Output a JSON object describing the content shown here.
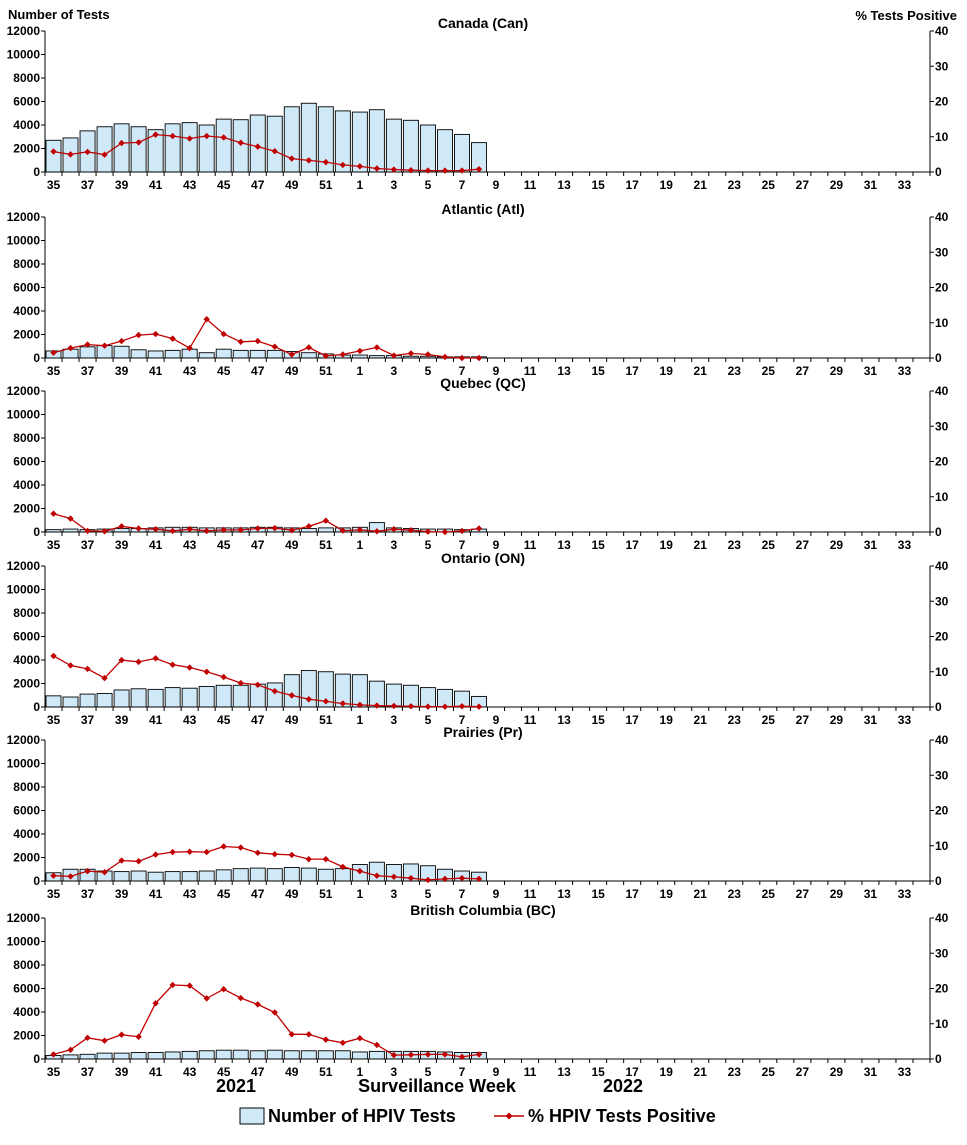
{
  "chart_data": {
    "type": "bar+line",
    "left_axis_label": "Number of Tests",
    "right_axis_label": "%  Tests Positive",
    "xlabel": "Surveillance Week",
    "year_labels": [
      "2021",
      "2022"
    ],
    "weeks": [
      35,
      36,
      37,
      38,
      39,
      40,
      41,
      42,
      43,
      44,
      45,
      46,
      47,
      48,
      49,
      50,
      51,
      52,
      1,
      2,
      3,
      4,
      5,
      6,
      7,
      8,
      9,
      10,
      11,
      12,
      13,
      14,
      15,
      16,
      17,
      18,
      19,
      20,
      21,
      22,
      23,
      24,
      25,
      26,
      27,
      28,
      29,
      30,
      31,
      32,
      33,
      34
    ],
    "x_tick_labels": [
      "35",
      "37",
      "39",
      "41",
      "43",
      "45",
      "47",
      "49",
      "51",
      "1",
      "3",
      "5",
      "7",
      "9",
      "11",
      "13",
      "15",
      "17",
      "19",
      "21",
      "23",
      "25",
      "27",
      "29",
      "31",
      "33"
    ],
    "left_ylim": [
      0,
      12000
    ],
    "left_ticks": [
      "0",
      "2000",
      "4000",
      "6000",
      "8000",
      "10000",
      "12000"
    ],
    "right_ylim": [
      0,
      40
    ],
    "right_ticks": [
      "0",
      "10",
      "20",
      "30",
      "40"
    ],
    "legend": {
      "bar_label": "Number of HPIV Tests",
      "line_label": "% HPIV Tests Positive",
      "bar_color": "#cfe9f8",
      "line_color": "#c00000"
    },
    "panels": [
      {
        "title": "Canada (Can)",
        "tests": [
          2700,
          2900,
          3500,
          3850,
          4100,
          3850,
          3600,
          4100,
          4200,
          4000,
          4500,
          4450,
          4850,
          4750,
          5550,
          5850,
          5550,
          5200,
          5100,
          5300,
          4500,
          4400,
          4000,
          3600,
          3200,
          2500
        ],
        "pct": [
          5.8,
          5.0,
          5.7,
          4.9,
          8.2,
          8.4,
          10.6,
          10.2,
          9.5,
          10.2,
          9.8,
          8.3,
          7.2,
          5.9,
          3.8,
          3.3,
          2.8,
          2.0,
          1.6,
          1.0,
          0.7,
          0.5,
          0.4,
          0.4,
          0.4,
          0.8
        ]
      },
      {
        "title": "Atlantic (Atl)",
        "tests": [
          600,
          750,
          950,
          1050,
          1000,
          700,
          600,
          650,
          750,
          450,
          750,
          650,
          650,
          650,
          550,
          450,
          350,
          250,
          250,
          200,
          200,
          150,
          150,
          100,
          100,
          100
        ],
        "pct": [
          1.5,
          2.8,
          3.8,
          3.5,
          4.8,
          6.5,
          6.8,
          5.5,
          2.8,
          11.0,
          6.8,
          4.6,
          4.8,
          3.2,
          1.0,
          3.0,
          0.6,
          1.0,
          2.0,
          3.0,
          0.7,
          1.3,
          1.0,
          0.3,
          0.0,
          0.0
        ]
      },
      {
        "title": "Quebec (QC)",
        "tests": [
          200,
          250,
          200,
          250,
          300,
          300,
          350,
          400,
          400,
          350,
          350,
          350,
          400,
          400,
          350,
          300,
          350,
          350,
          400,
          800,
          350,
          300,
          250,
          250,
          200,
          250
        ],
        "pct": [
          5.2,
          3.8,
          0.3,
          0.2,
          1.6,
          1.0,
          0.8,
          0.3,
          0.8,
          0.3,
          0.6,
          0.6,
          1.0,
          1.1,
          0.5,
          1.6,
          3.2,
          0.4,
          0.6,
          0.2,
          0.8,
          0.5,
          0.1,
          0.0,
          0.3,
          1.0
        ]
      },
      {
        "title": "Ontario (ON)",
        "tests": [
          950,
          850,
          1100,
          1150,
          1450,
          1550,
          1500,
          1650,
          1600,
          1750,
          1850,
          1850,
          1950,
          2050,
          2750,
          3100,
          3000,
          2800,
          2750,
          2200,
          1950,
          1850,
          1650,
          1500,
          1350,
          900
        ],
        "pct": [
          14.5,
          11.8,
          10.8,
          8.2,
          13.3,
          12.8,
          13.8,
          12.0,
          11.2,
          10.0,
          8.5,
          6.8,
          6.3,
          4.5,
          3.3,
          2.2,
          1.6,
          1.0,
          0.6,
          0.4,
          0.3,
          0.2,
          0.1,
          0.1,
          0.2,
          0.1
        ]
      },
      {
        "title": "Prairies (Pr)",
        "tests": [
          700,
          1000,
          1000,
          850,
          800,
          850,
          750,
          800,
          800,
          850,
          950,
          1050,
          1100,
          1050,
          1150,
          1100,
          1000,
          1050,
          1400,
          1600,
          1400,
          1450,
          1300,
          1000,
          850,
          750
        ],
        "pct": [
          1.5,
          1.3,
          2.8,
          2.5,
          5.8,
          5.6,
          7.5,
          8.2,
          8.3,
          8.2,
          9.8,
          9.5,
          8.0,
          7.6,
          7.4,
          6.2,
          6.2,
          4.0,
          2.8,
          1.5,
          1.2,
          0.8,
          0.3,
          0.6,
          0.8,
          0.6
        ]
      },
      {
        "title": "British Columbia (BC)",
        "tests": [
          300,
          350,
          400,
          500,
          500,
          550,
          550,
          600,
          650,
          700,
          750,
          750,
          700,
          750,
          700,
          700,
          700,
          700,
          600,
          650,
          650,
          650,
          650,
          600,
          550,
          550
        ],
        "pct": [
          1.3,
          2.6,
          6.0,
          5.2,
          6.9,
          6.3,
          15.8,
          21.0,
          20.8,
          17.2,
          19.8,
          17.3,
          15.5,
          13.2,
          7.0,
          7.0,
          5.5,
          4.6,
          5.9,
          4.0,
          1.1,
          1.2,
          1.3,
          1.3,
          0.6,
          1.3
        ]
      }
    ]
  }
}
